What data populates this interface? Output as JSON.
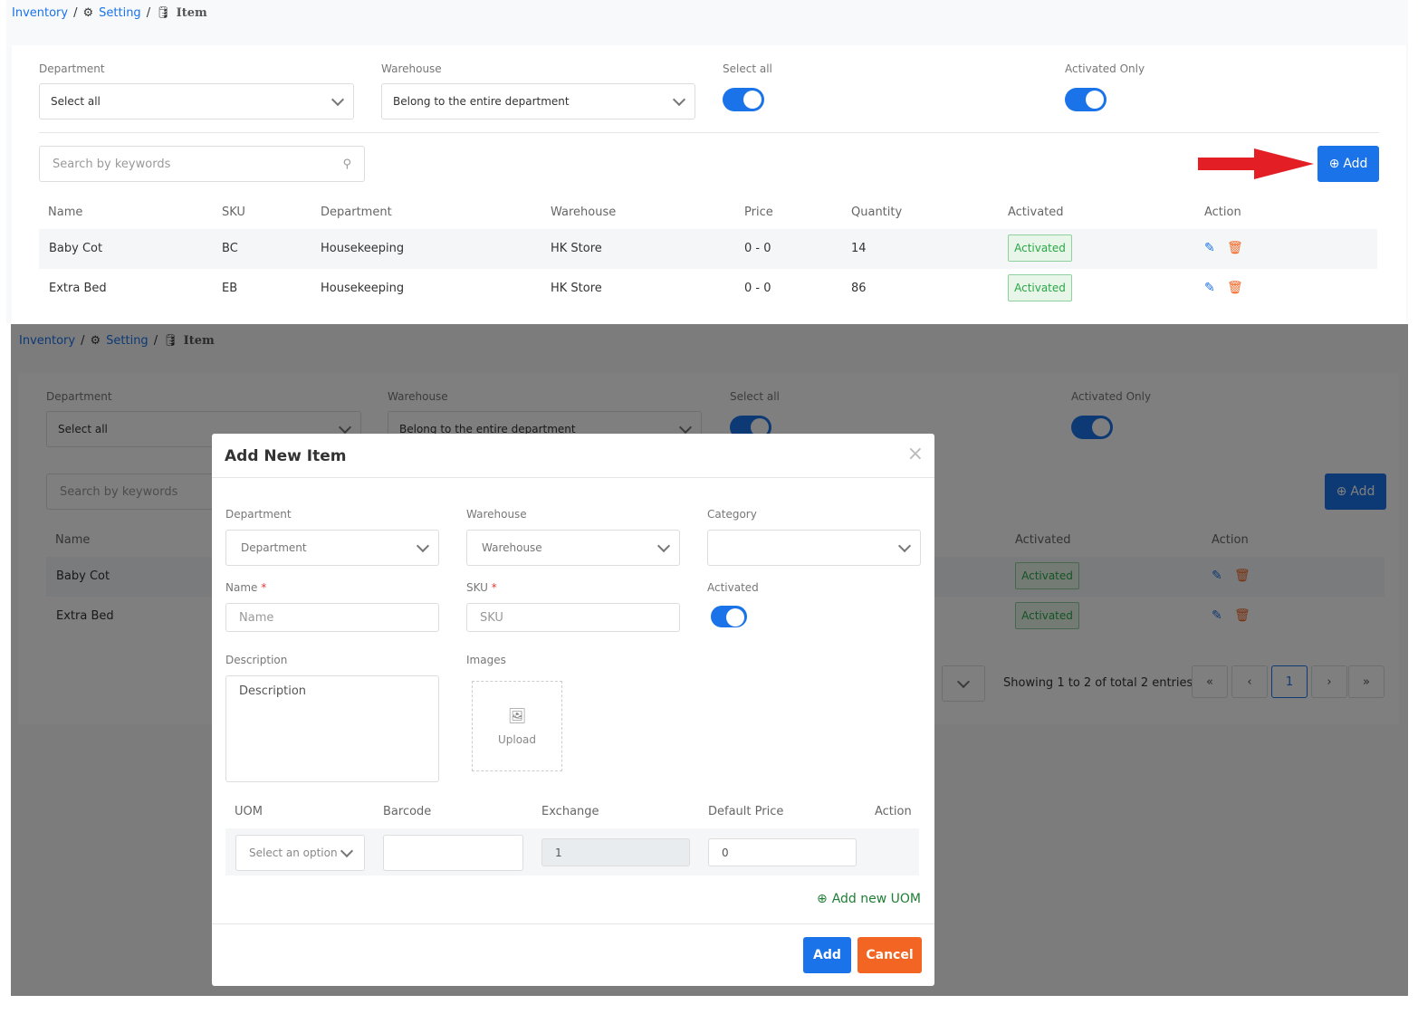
{
  "breadcrumb": {
    "root": "Inventory",
    "setting": "Setting",
    "current": "Item"
  },
  "filters": {
    "department_label": "Department",
    "department_value": "Select all",
    "warehouse_label": "Warehouse",
    "warehouse_value": "Belong to the entire department",
    "select_all_label": "Select all",
    "select_all_on": true,
    "activated_only_label": "Activated Only",
    "activated_only_on": true
  },
  "search": {
    "placeholder": "Search by keywords"
  },
  "add_label": "Add",
  "table": {
    "headers": [
      "Name",
      "SKU",
      "Department",
      "Warehouse",
      "Price",
      "Quantity",
      "Activated",
      "Action"
    ],
    "rows": [
      {
        "name": "Baby Cot",
        "sku": "BC",
        "department": "Housekeeping",
        "warehouse": "HK Store",
        "price": "0 - 0",
        "quantity": "14",
        "activated": "Activated"
      },
      {
        "name": "Extra Bed",
        "sku": "EB",
        "department": "Housekeeping",
        "warehouse": "HK Store",
        "price": "0 - 0",
        "quantity": "86",
        "activated": "Activated"
      }
    ]
  },
  "pagination": {
    "summary": "Showing 1 to 2 of total 2 entries",
    "current_page": "1"
  },
  "colors": {
    "primary": "#1a73e8",
    "danger": "#f26522",
    "success": "#28a745",
    "arrow": "#e31e24"
  },
  "modal": {
    "title": "Add New Item",
    "department_label": "Department",
    "department_placeholder": "Department",
    "warehouse_label": "Warehouse",
    "warehouse_placeholder": "Warehouse",
    "category_label": "Category",
    "category_value": "",
    "name_label": "Name",
    "name_placeholder": "Name",
    "sku_label": "SKU",
    "sku_placeholder": "SKU",
    "activated_label": "Activated",
    "activated_on": true,
    "description_label": "Description",
    "description_placeholder": "Description",
    "images_label": "Images",
    "upload_label": "Upload",
    "uom_headers": [
      "UOM",
      "Barcode",
      "Exchange",
      "Default Price",
      "Action"
    ],
    "uom_row": {
      "uom_placeholder": "Select an option",
      "barcode": "",
      "exchange": "1",
      "default_price": "0"
    },
    "add_uom_label": "Add new UOM",
    "submit_label": "Add",
    "cancel_label": "Cancel"
  }
}
